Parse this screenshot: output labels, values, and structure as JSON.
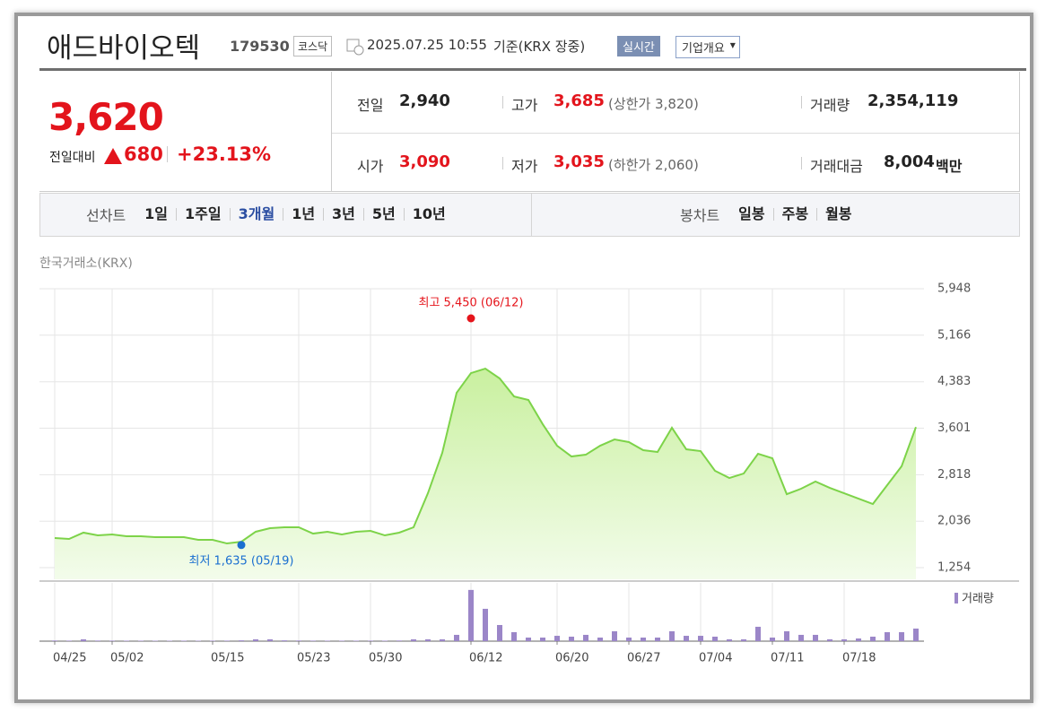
{
  "header": {
    "name": "애드바이오텍",
    "code": "179530",
    "market": "코스닥",
    "timestamp": "2025.07.25 10:55",
    "basis": "기준(KRX 장중)",
    "realtime": "실시간",
    "company_info": "기업개요"
  },
  "quote": {
    "price": "3,620",
    "change_label": "전일대비",
    "change": "680",
    "change_pct": "+23.13%",
    "stats": [
      {
        "label": "전일",
        "value": "2,940"
      },
      {
        "label": "고가",
        "value": "3,685",
        "note": "(상한가 3,820)"
      },
      {
        "label": "거래량",
        "value": "2,354,119"
      },
      {
        "label": "시가",
        "value": "3,090"
      },
      {
        "label": "저가",
        "value": "3,035",
        "note": "(하한가 2,060)"
      },
      {
        "label": "거래대금",
        "value": "8,004",
        "unit": "백만"
      }
    ]
  },
  "tabs": {
    "line_chart": {
      "label": "선차트",
      "periods": [
        "1일",
        "1주일",
        "3개월",
        "1년",
        "3년",
        "5년",
        "10년"
      ]
    },
    "candle_chart": {
      "label": "봉차트",
      "periods": [
        "일봉",
        "주봉",
        "월봉"
      ]
    }
  },
  "chart_data": {
    "type": "area",
    "source": "한국거래소(KRX)",
    "categories": [
      "04/25",
      null,
      null,
      null,
      "05/02",
      null,
      null,
      null,
      null,
      null,
      null,
      "05/15",
      null,
      null,
      null,
      null,
      null,
      "05/23",
      null,
      null,
      null,
      null,
      "05/30",
      null,
      null,
      null,
      null,
      null,
      null,
      "06/12",
      null,
      null,
      null,
      null,
      null,
      "06/20",
      null,
      null,
      null,
      null,
      "06/27",
      null,
      null,
      null,
      null,
      "07/04",
      null,
      null,
      null,
      null,
      "07/11",
      null,
      null,
      null,
      null,
      "07/18",
      null,
      null,
      null,
      null,
      null
    ],
    "values": [
      1752,
      1737,
      1843,
      1797,
      1812,
      1782,
      1782,
      1767,
      1767,
      1767,
      1722,
      1722,
      1661,
      1690,
      1858,
      1918,
      1933,
      1933,
      1827,
      1858,
      1812,
      1858,
      1873,
      1797,
      1843,
      1933,
      2506,
      3186,
      4196,
      4528,
      4604,
      4438,
      4136,
      4076,
      3668,
      3306,
      3125,
      3155,
      3306,
      3412,
      3367,
      3231,
      3201,
      3608,
      3246,
      3216,
      2884,
      2763,
      2838,
      3170,
      3095,
      2491,
      2582,
      2703,
      2597,
      2506,
      2416,
      2325,
      2642,
      2959,
      3620
    ],
    "color": "#7dd349",
    "ylim": [
      1254,
      5948
    ],
    "yticks": [
      {
        "value": 1254,
        "label": "1,254"
      },
      {
        "value": 2036,
        "label": "2,036"
      },
      {
        "value": 2818,
        "label": "2,818"
      },
      {
        "value": 3601,
        "label": "3,601"
      },
      {
        "value": 4383,
        "label": "4,383"
      },
      {
        "value": 5166,
        "label": "5,166"
      },
      {
        "value": 5948,
        "label": "5,948"
      }
    ],
    "grid": true,
    "annotations": [
      {
        "text": "최고 5,450 (06/12)",
        "value": 5450,
        "index": 29,
        "color": "#e5141b"
      },
      {
        "text": "최저 1,635 (05/19)",
        "value": 1635,
        "index": 13,
        "color": "#1a6fd0"
      }
    ],
    "volume": {
      "name": "거래량",
      "color": "#9b86c8",
      "ylim": [
        0,
        10900000
      ],
      "values": [
        120000,
        100000,
        340000,
        110000,
        100000,
        90000,
        90000,
        80000,
        80000,
        90000,
        80000,
        90000,
        100000,
        150000,
        340000,
        340000,
        150000,
        120000,
        100000,
        90000,
        90000,
        90000,
        100000,
        90000,
        120000,
        340000,
        340000,
        340000,
        1180000,
        9580000,
        6050000,
        3020000,
        1680000,
        670000,
        670000,
        1000000,
        840000,
        1180000,
        670000,
        1850000,
        670000,
        670000,
        670000,
        1850000,
        1000000,
        1000000,
        840000,
        340000,
        340000,
        2690000,
        670000,
        1850000,
        1180000,
        1180000,
        340000,
        340000,
        500000,
        840000,
        1680000,
        1680000,
        2354119
      ]
    }
  }
}
